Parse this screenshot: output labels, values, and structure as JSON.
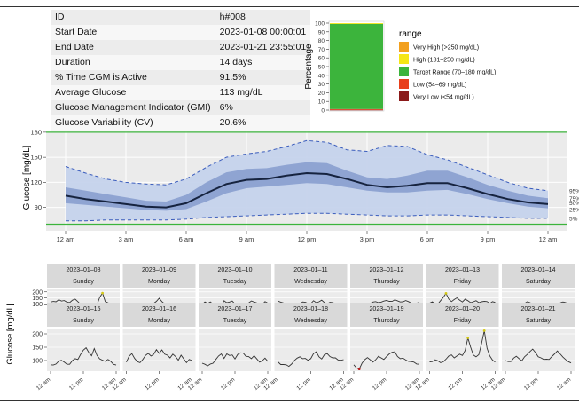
{
  "stats": [
    {
      "label": "ID",
      "value": "h#008"
    },
    {
      "label": "Start Date",
      "value": "2023-01-08 00:00:01"
    },
    {
      "label": "End Date",
      "value": "2023-01-21 23:55:01"
    },
    {
      "label": "Duration",
      "value": "14 days"
    },
    {
      "label": "% Time CGM is Active",
      "value": "91.5%"
    },
    {
      "label": "Average Glucose",
      "value": "113 mg/dL"
    },
    {
      "label": "Glucose Management Indicator (GMI)",
      "value": "6%"
    },
    {
      "label": "Glucose Variability (CV)",
      "value": "20.6%"
    }
  ],
  "chart_data": [
    {
      "type": "bar",
      "ylabel": "Percentage",
      "ylim": [
        0,
        100
      ],
      "yticks": [
        0,
        10,
        20,
        30,
        40,
        50,
        60,
        70,
        80,
        90,
        100
      ],
      "legend_title": "range",
      "legend_position": "right",
      "series": [
        {
          "name": "Very Low (<54 mg/dL)",
          "color": "#8b1a1a",
          "value": 0.3
        },
        {
          "name": "Low (54–69 mg/dL)",
          "color": "#e8401c",
          "value": 0.9
        },
        {
          "name": "Target Range (70–180 mg/dL)",
          "color": "#3cb43c",
          "value": 97.9
        },
        {
          "name": "High (181–250 mg/dL)",
          "color": "#f5e616",
          "value": 0.9
        },
        {
          "name": "Very High (>250 mg/dL)",
          "color": "#f2a01e",
          "value": 0
        }
      ],
      "legend_order": [
        "Very High (>250 mg/dL)",
        "High (181–250 mg/dL)",
        "Target Range (70–180 mg/dL)",
        "Low (54–69 mg/dL)",
        "Very Low (<54 mg/dL)"
      ]
    },
    {
      "type": "area",
      "ylabel": "Glucose [mg/dL]",
      "ylim": [
        62,
        182
      ],
      "yticks": [
        90,
        120,
        150,
        180
      ],
      "target_lines": [
        70,
        180
      ],
      "xlim": [
        0,
        24
      ],
      "xticks": [
        0,
        3,
        6,
        9,
        12,
        15,
        18,
        21,
        24
      ],
      "xtick_labels": [
        "12 am",
        "3 am",
        "6 am",
        "9 am",
        "12 pm",
        "3 pm",
        "6 pm",
        "9 pm",
        "12 am"
      ],
      "percentile_labels": [
        "95%",
        "75%",
        "50%",
        "25%",
        "5%"
      ],
      "colors": {
        "outer": "#c5d3ec",
        "inner": "#8fa4d2",
        "median": "#16233f",
        "p5_95": "#3a5cbc",
        "target": "#3cb43c"
      },
      "hours": [
        0,
        1,
        2,
        3,
        4,
        5,
        6,
        7,
        8,
        9,
        10,
        11,
        12,
        13,
        14,
        15,
        16,
        17,
        18,
        19,
        20,
        21,
        22,
        23,
        24
      ],
      "p5": [
        74,
        74,
        75,
        75,
        75,
        75,
        76,
        78,
        79,
        80,
        81,
        82,
        83,
        83,
        82,
        81,
        80,
        80,
        81,
        81,
        80,
        79,
        78,
        77,
        77
      ],
      "p25": [
        95,
        93,
        91,
        89,
        87,
        86,
        88,
        97,
        107,
        113,
        115,
        117,
        119,
        118,
        114,
        110,
        108,
        108,
        110,
        111,
        106,
        100,
        95,
        91,
        89
      ],
      "p50": [
        104,
        100,
        97,
        94,
        91,
        90,
        95,
        107,
        118,
        123,
        124,
        128,
        131,
        130,
        124,
        117,
        114,
        116,
        119,
        119,
        113,
        106,
        100,
        96,
        94
      ],
      "p75": [
        114,
        110,
        106,
        102,
        98,
        97,
        105,
        120,
        132,
        136,
        137,
        141,
        144,
        143,
        134,
        126,
        124,
        128,
        134,
        134,
        126,
        117,
        110,
        104,
        101
      ],
      "p95": [
        139,
        131,
        124,
        120,
        118,
        117,
        124,
        138,
        150,
        154,
        157,
        163,
        170,
        168,
        159,
        157,
        164,
        163,
        153,
        147,
        138,
        129,
        120,
        113,
        110
      ]
    },
    {
      "type": "line",
      "ylabel": "Glucose [mg/dL]",
      "ylim": [
        60,
        220
      ],
      "yticks": [
        100,
        150,
        200
      ],
      "xtick_labels": [
        "12 am",
        "12 pm",
        "12 am"
      ],
      "line_color": "#333333",
      "days": [
        {
          "date": "2023–01–08",
          "weekday": "Sunday",
          "profile": [
            116,
            121,
            118,
            136,
            124,
            128,
            115,
            112,
            131,
            140,
            120,
            97,
            90,
            92,
            84,
            80,
            84,
            94,
            155,
            190,
            120,
            110,
            100,
            96,
            89
          ]
        },
        {
          "date": "2023–01–09",
          "weekday": "Monday",
          "profile": [
            97,
            89,
            82,
            86,
            96,
            99,
            92,
            97,
            94,
            89,
            104,
            122,
            148,
            120,
            101,
            104,
            97,
            91,
            88,
            93,
            97,
            87,
            78,
            84,
            86
          ]
        },
        {
          "date": "2023–01–10",
          "weekday": "Tuesday",
          "profile": [
            96,
            117,
            104,
            117,
            98,
            68,
            56,
            83,
            127,
            110,
            116,
            124,
            99,
            99,
            91,
            94,
            96,
            108,
            125,
            116,
            109,
            98,
            96,
            120,
            107
          ]
        },
        {
          "date": "2023–01–11",
          "weekday": "Wednesday",
          "profile": [
            124,
            115,
            109,
            98,
            90,
            83,
            84,
            92,
            101,
            117,
            114,
            104,
            102,
            127,
            111,
            118,
            131,
            111,
            101,
            114,
            111,
            103,
            98,
            106,
            101
          ]
        },
        {
          "date": "2023–01–12",
          "weekday": "Thursday",
          "profile": [
            87,
            92,
            103,
            107,
            99,
            96,
            104,
            116,
            120,
            111,
            115,
            124,
            129,
            122,
            121,
            135,
            126,
            117,
            118,
            128,
            120,
            107,
            94,
            107,
            113
          ]
        },
        {
          "date": "2023–01–13",
          "weekday": "Friday",
          "profile": [
            107,
            118,
            100,
            99,
            127,
            154,
            188,
            141,
            120,
            137,
            151,
            132,
            117,
            140,
            127,
            111,
            118,
            127,
            111,
            118,
            122,
            120,
            103,
            119,
            113
          ]
        },
        {
          "date": "2023–01–14",
          "weekday": "Saturday",
          "profile": [
            88,
            94,
            94,
            92,
            91,
            100,
            104,
            104,
            118,
            111,
            99,
            94,
            98,
            104,
            106,
            101,
            90,
            87,
            105,
            104,
            109,
            117,
            112,
            103,
            96
          ]
        },
        {
          "date": "2023–01–15",
          "weekday": "Sunday",
          "profile": [
            84,
            83,
            87,
            98,
            101,
            94,
            86,
            86,
            100,
            107,
            104,
            123,
            139,
            148,
            130,
            118,
            145,
            119,
            106,
            101,
            97,
            104,
            97,
            86,
            83
          ]
        },
        {
          "date": "2023–01–16",
          "weekday": "Monday",
          "profile": [
            94,
            116,
            126,
            108,
            96,
            92,
            104,
            119,
            127,
            117,
            123,
            141,
            127,
            140,
            124,
            120,
            110,
            124,
            115,
            101,
            120,
            106,
            92,
            104,
            100
          ]
        },
        {
          "date": "2023–01–17",
          "weekday": "Tuesday",
          "profile": [
            90,
            86,
            80,
            87,
            90,
            104,
            117,
            125,
            108,
            125,
            119,
            121,
            106,
            123,
            129,
            128,
            116,
            115,
            107,
            118,
            106,
            94,
            99,
            109,
            97
          ]
        },
        {
          "date": "2023–01–18",
          "weekday": "Wednesday",
          "profile": [
            95,
            85,
            85,
            84,
            78,
            87,
            100,
            109,
            114,
            107,
            108,
            101,
            107,
            126,
            133,
            114,
            106,
            122,
            126,
            115,
            110,
            110,
            102,
            101,
            103
          ]
        },
        {
          "date": "2023–01–19",
          "weekday": "Thursday",
          "profile": [
            84,
            72,
            68,
            90,
            103,
            111,
            103,
            94,
            103,
            116,
            110,
            104,
            115,
            125,
            131,
            133,
            115,
            107,
            109,
            102,
            97,
            96,
            94,
            87,
            86
          ]
        },
        {
          "date": "2023–01–20",
          "weekday": "Friday",
          "profile": [
            95,
            96,
            103,
            99,
            92,
            95,
            105,
            117,
            121,
            110,
            117,
            124,
            119,
            138,
            185,
            150,
            121,
            114,
            122,
            164,
            212,
            146,
            118,
            102,
            94
          ]
        },
        {
          "date": "2023–01–21",
          "weekday": "Saturday",
          "profile": [
            100,
            96,
            96,
            109,
            116,
            107,
            99,
            114,
            123,
            134,
            143,
            130,
            114,
            110,
            104,
            105,
            104,
            115,
            125,
            136,
            125,
            113,
            104,
            96,
            91
          ]
        }
      ]
    }
  ]
}
